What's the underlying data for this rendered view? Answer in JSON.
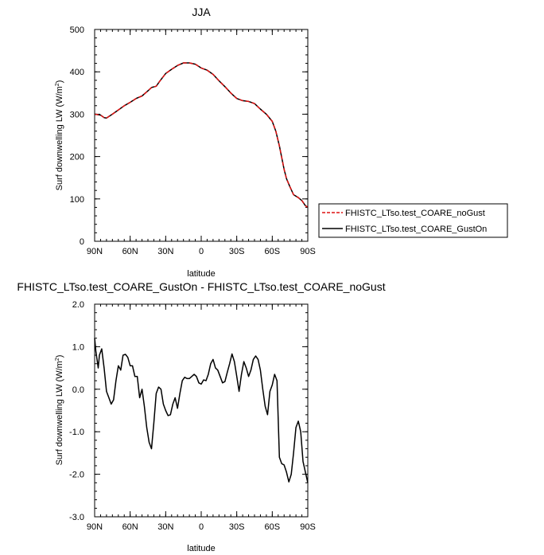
{
  "chart_data": [
    {
      "type": "line",
      "title": "JJA",
      "xlabel": "latitude",
      "ylabel": "Surf downwelling LW (W/m",
      "ylabel_sup": "2",
      "ylabel_close": ")",
      "xlim": [
        90,
        -90
      ],
      "ylim": [
        0,
        500
      ],
      "x_ticks": [
        {
          "value": 90,
          "label": "90N"
        },
        {
          "value": 60,
          "label": "60N"
        },
        {
          "value": 30,
          "label": "30N"
        },
        {
          "value": 0,
          "label": "0"
        },
        {
          "value": -30,
          "label": "30S"
        },
        {
          "value": -60,
          "label": "60S"
        },
        {
          "value": -90,
          "label": "90S"
        }
      ],
      "y_ticks": [
        {
          "value": 0,
          "label": "0"
        },
        {
          "value": 100,
          "label": "100"
        },
        {
          "value": 200,
          "label": "200"
        },
        {
          "value": 300,
          "label": "300"
        },
        {
          "value": 400,
          "label": "400"
        },
        {
          "value": 500,
          "label": "500"
        }
      ],
      "legend_position": "right",
      "series": [
        {
          "name": "FHISTC_LTso.test_COARE_noGust",
          "color": "#dd1111",
          "dash": "dashed",
          "x": [
            90,
            85,
            82,
            80,
            75,
            70,
            65,
            60,
            55,
            50,
            45,
            42,
            38,
            35,
            30,
            25,
            20,
            15,
            10,
            5,
            0,
            -5,
            -10,
            -15,
            -20,
            -25,
            -30,
            -35,
            -40,
            -45,
            -50,
            -55,
            -60,
            -63,
            -66,
            -68,
            -70,
            -72,
            -75,
            -78,
            -82,
            -85,
            -88,
            -90
          ],
          "values": [
            300,
            298,
            292,
            291,
            300,
            310,
            320,
            328,
            337,
            343,
            355,
            363,
            366,
            378,
            396,
            406,
            415,
            421,
            421,
            418,
            409,
            404,
            394,
            379,
            365,
            350,
            337,
            332,
            330,
            325,
            312,
            300,
            283,
            260,
            225,
            198,
            170,
            148,
            128,
            110,
            103,
            96,
            84,
            80
          ]
        },
        {
          "name": "FHISTC_LTso.test_COARE_GustOn",
          "color": "#000000",
          "dash": "solid",
          "x": [
            90,
            85,
            82,
            80,
            75,
            70,
            65,
            60,
            55,
            50,
            45,
            42,
            38,
            35,
            30,
            25,
            20,
            15,
            10,
            5,
            0,
            -5,
            -10,
            -15,
            -20,
            -25,
            -30,
            -35,
            -40,
            -45,
            -50,
            -55,
            -60,
            -63,
            -66,
            -68,
            -70,
            -72,
            -75,
            -78,
            -82,
            -85,
            -88,
            -90
          ],
          "values": [
            300,
            298,
            292,
            291,
            300,
            310,
            320,
            328,
            337,
            343,
            355,
            363,
            366,
            378,
            396,
            406,
            415,
            421,
            421,
            418,
            409,
            404,
            394,
            379,
            365,
            350,
            337,
            332,
            330,
            325,
            312,
            300,
            283,
            260,
            225,
            198,
            170,
            148,
            128,
            110,
            103,
            96,
            84,
            80
          ]
        }
      ]
    },
    {
      "type": "line",
      "title": "FHISTC_LTso.test_COARE_GustOn - FHISTC_LTso.test_COARE_noGust",
      "xlabel": "latitude",
      "ylabel": "Surf downwelling LW (W/m",
      "ylabel_sup": "2",
      "ylabel_close": ")",
      "xlim": [
        90,
        -90
      ],
      "ylim": [
        -3.0,
        2.0
      ],
      "x_ticks": [
        {
          "value": 90,
          "label": "90N"
        },
        {
          "value": 60,
          "label": "60N"
        },
        {
          "value": 30,
          "label": "30N"
        },
        {
          "value": 0,
          "label": "0"
        },
        {
          "value": -30,
          "label": "30S"
        },
        {
          "value": -60,
          "label": "60S"
        },
        {
          "value": -90,
          "label": "90S"
        }
      ],
      "y_ticks": [
        {
          "value": -3.0,
          "label": "-3.0"
        },
        {
          "value": -2.0,
          "label": "-2.0"
        },
        {
          "value": -1.0,
          "label": "-1.0"
        },
        {
          "value": 0.0,
          "label": "0.0"
        },
        {
          "value": 1.0,
          "label": "1.0"
        },
        {
          "value": 2.0,
          "label": "2.0"
        }
      ],
      "series": [
        {
          "color": "#000000",
          "x": [
            90,
            89,
            87,
            86,
            84,
            82,
            80,
            78,
            76,
            74,
            72,
            70,
            68,
            66,
            64,
            62,
            60,
            58,
            56,
            54,
            52,
            50,
            48,
            46,
            44,
            42,
            40,
            38,
            36,
            34,
            32,
            30,
            28,
            26,
            24,
            22,
            20,
            18,
            16,
            14,
            12,
            10,
            8,
            6,
            4,
            2,
            0,
            -2,
            -4,
            -6,
            -8,
            -10,
            -12,
            -14,
            -16,
            -18,
            -20,
            -22,
            -24,
            -26,
            -28,
            -30,
            -32,
            -34,
            -36,
            -38,
            -40,
            -42,
            -44,
            -46,
            -48,
            -50,
            -52,
            -54,
            -56,
            -58,
            -60,
            -62,
            -64,
            -66,
            -68,
            -70,
            -72,
            -74,
            -76,
            -78,
            -80,
            -82,
            -84,
            -86,
            -88,
            -90
          ],
          "values": [
            1.2,
            0.9,
            0.5,
            0.8,
            0.95,
            0.5,
            -0.05,
            -0.2,
            -0.35,
            -0.25,
            0.2,
            0.55,
            0.45,
            0.8,
            0.82,
            0.75,
            0.55,
            0.55,
            0.3,
            0.3,
            -0.2,
            0.0,
            -0.4,
            -0.9,
            -1.25,
            -1.4,
            -0.8,
            -0.1,
            0.05,
            0.0,
            -0.35,
            -0.5,
            -0.62,
            -0.6,
            -0.35,
            -0.2,
            -0.45,
            -0.1,
            0.2,
            0.28,
            0.25,
            0.25,
            0.3,
            0.35,
            0.3,
            0.15,
            0.12,
            0.22,
            0.2,
            0.35,
            0.6,
            0.7,
            0.5,
            0.45,
            0.3,
            0.15,
            0.18,
            0.4,
            0.6,
            0.83,
            0.65,
            0.3,
            -0.05,
            0.35,
            0.65,
            0.5,
            0.3,
            0.45,
            0.7,
            0.78,
            0.7,
            0.45,
            0.0,
            -0.4,
            -0.6,
            -0.05,
            0.1,
            0.35,
            0.2,
            -1.6,
            -1.75,
            -1.78,
            -1.95,
            -2.18,
            -2.0,
            -1.5,
            -0.9,
            -0.75,
            -1.0,
            -1.7,
            -1.95,
            -2.2
          ]
        }
      ]
    }
  ]
}
